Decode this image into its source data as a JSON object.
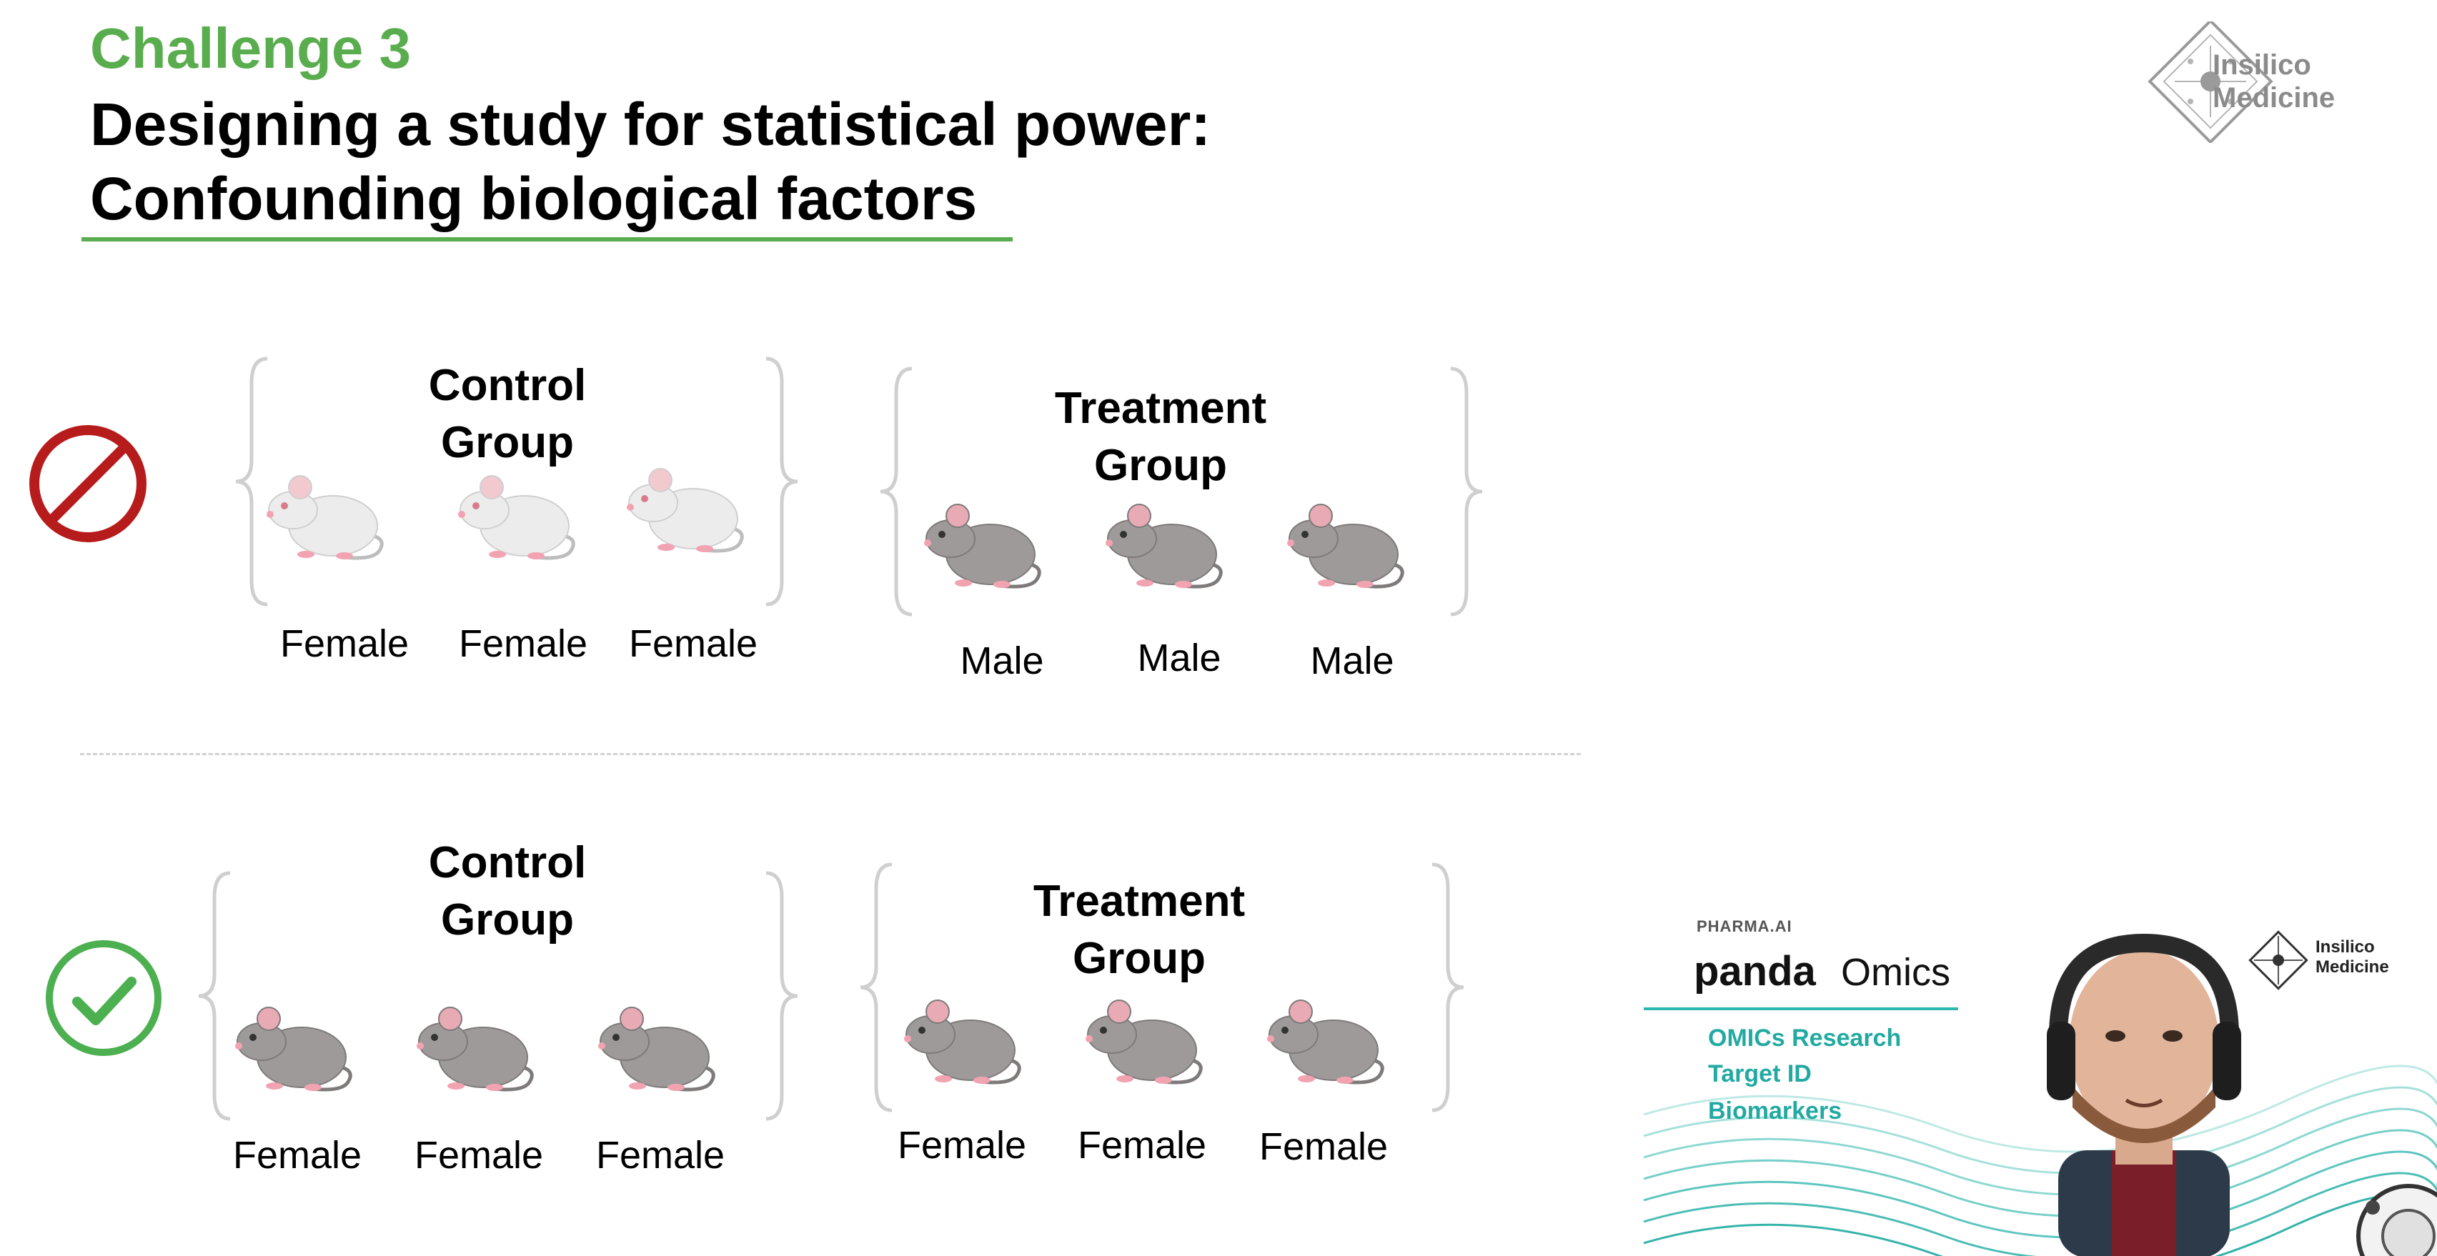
{
  "header": {
    "challenge": "Challenge 3",
    "title_line1": "Designing a study for statistical power:",
    "title_line2": "Confounding biological factors"
  },
  "logo": {
    "line1": "Insilico",
    "line2": "Medicine"
  },
  "colors": {
    "accent_green": "#5aad4e",
    "bad_red": "#b71c1c",
    "good_green": "#4caf50",
    "overlay_teal": "#22aaa2",
    "white_mouse": "#ececec",
    "grey_mouse": "#9e9a9a"
  },
  "rows": [
    {
      "status": "prohibited-icon",
      "groups": [
        {
          "title_line1": "Control",
          "title_line2": "Group",
          "mouse_color": "white",
          "labels": [
            "Female",
            "Female",
            "Female"
          ]
        },
        {
          "title_line1": "Treatment",
          "title_line2": "Group",
          "mouse_color": "grey",
          "labels": [
            "Male",
            "Male",
            "Male"
          ]
        }
      ]
    },
    {
      "status": "checkmark-icon",
      "groups": [
        {
          "title_line1": "Control",
          "title_line2": "Group",
          "mouse_color": "grey",
          "labels": [
            "Female",
            "Female",
            "Female"
          ]
        },
        {
          "title_line1": "Treatment",
          "title_line2": "Group",
          "mouse_color": "grey",
          "labels": [
            "Female",
            "Female",
            "Female"
          ]
        }
      ]
    }
  ],
  "overlay": {
    "tagline": "PHARMA.AI",
    "brand_bold": "panda",
    "brand_light": "Omics",
    "features": [
      "OMICs Research",
      "Target ID",
      "Biomarkers"
    ],
    "logo_line1": "Insilico",
    "logo_line2": "Medicine"
  }
}
